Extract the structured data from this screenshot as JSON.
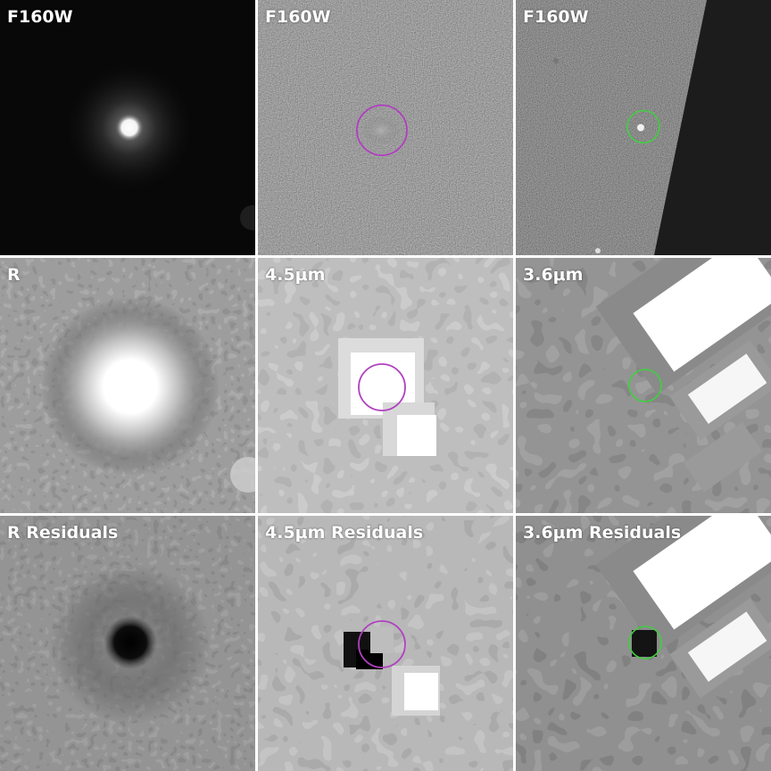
{
  "panels": [
    {
      "label": "F160W"
    },
    {
      "label": "F160W"
    },
    {
      "label": "F160W"
    },
    {
      "label": "R"
    },
    {
      "label": "4.5μm"
    },
    {
      "label": "3.6μm"
    },
    {
      "label": "R Residuals"
    },
    {
      "label": "4.5μm Residuals"
    },
    {
      "label": "3.6μm Residuals"
    }
  ],
  "colors": {
    "magenta_circle": "#b040c0",
    "green_circle": "#40d040",
    "divider": "#ffffff"
  }
}
